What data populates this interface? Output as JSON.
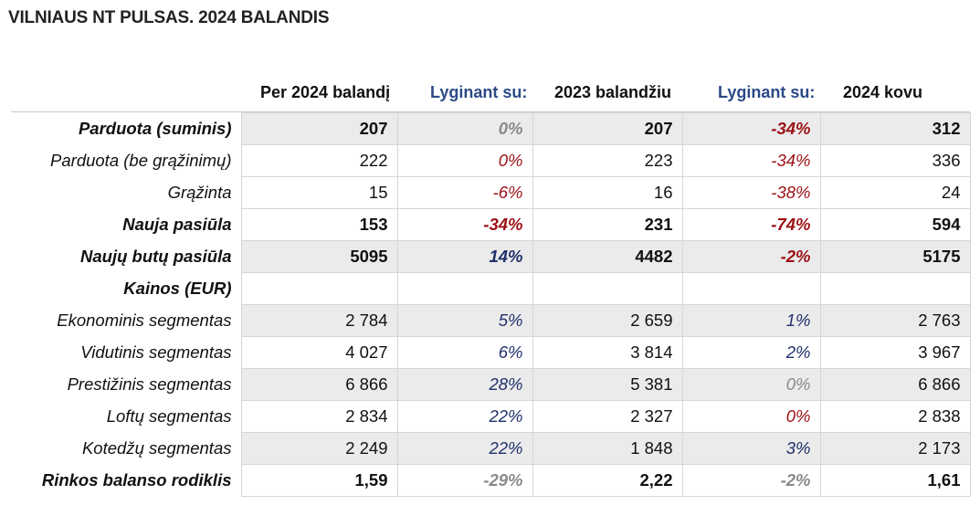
{
  "title": "VILNIAUS NT PULSAS. 2024 BALANDIS",
  "headers": {
    "col1": "Per 2024 balandį",
    "cmp1": "Lyginant su:",
    "col2": "2023 balandžiu",
    "cmp2": "Lyginant su:",
    "col3": "2024 kovu"
  },
  "colors": {
    "header_blue": "#2b4a86",
    "negative_red": "#9c1015",
    "positive_blue": "#1f2f6b",
    "neutral_grey": "#8a8a8a",
    "shade": "#ebebeb"
  },
  "rows": [
    {
      "label": "Parduota (suminis)",
      "bold": true,
      "shade": true,
      "v1": "207",
      "p1": "0%",
      "p1c": "grey",
      "v2": "207",
      "p2": "-34%",
      "p2c": "red",
      "v3": "312"
    },
    {
      "label": "Parduota (be grąžinimų)",
      "bold": false,
      "shade": false,
      "v1": "222",
      "p1": "0%",
      "p1c": "red",
      "v2": "223",
      "p2": "-34%",
      "p2c": "red",
      "v3": "336"
    },
    {
      "label": "Grąžinta",
      "bold": false,
      "shade": false,
      "v1": "15",
      "p1": "-6%",
      "p1c": "red",
      "v2": "16",
      "p2": "-38%",
      "p2c": "red",
      "v3": "24"
    },
    {
      "label": "Nauja pasiūla",
      "bold": true,
      "shade": false,
      "v1": "153",
      "p1": "-34%",
      "p1c": "red",
      "v2": "231",
      "p2": "-74%",
      "p2c": "red",
      "v3": "594"
    },
    {
      "label": "Naujų butų pasiūla",
      "bold": true,
      "shade": true,
      "v1": "5095",
      "p1": "14%",
      "p1c": "blue",
      "v2": "4482",
      "p2": "-2%",
      "p2c": "red",
      "v3": "5175"
    },
    {
      "label": "Kainos (EUR)",
      "bold": true,
      "shade": false,
      "v1": "",
      "p1": "",
      "p1c": "black",
      "v2": "",
      "p2": "",
      "p2c": "black",
      "v3": ""
    },
    {
      "label": "Ekonominis segmentas",
      "bold": false,
      "shade": true,
      "v1": "2 784",
      "p1": "5%",
      "p1c": "blue",
      "v2": "2 659",
      "p2": "1%",
      "p2c": "blue",
      "v3": "2 763"
    },
    {
      "label": "Vidutinis segmentas",
      "bold": false,
      "shade": false,
      "v1": "4 027",
      "p1": "6%",
      "p1c": "blue",
      "v2": "3 814",
      "p2": "2%",
      "p2c": "blue",
      "v3": "3 967"
    },
    {
      "label": "Prestižinis segmentas",
      "bold": false,
      "shade": true,
      "v1": "6 866",
      "p1": "28%",
      "p1c": "blue",
      "v2": "5 381",
      "p2": "0%",
      "p2c": "grey",
      "v3": "6 866"
    },
    {
      "label": "Loftų segmentas",
      "bold": false,
      "shade": false,
      "v1": "2 834",
      "p1": "22%",
      "p1c": "blue",
      "v2": "2 327",
      "p2": "0%",
      "p2c": "red",
      "v3": "2 838"
    },
    {
      "label": "Kotedžų segmentas",
      "bold": false,
      "shade": true,
      "v1": "2 249",
      "p1": "22%",
      "p1c": "blue",
      "v2": "1 848",
      "p2": "3%",
      "p2c": "blue",
      "v3": "2 173"
    },
    {
      "label": "Rinkos balanso rodiklis",
      "bold": true,
      "shade": false,
      "v1": "1,59",
      "p1": "-29%",
      "p1c": "grey",
      "v2": "2,22",
      "p2": "-2%",
      "p2c": "grey",
      "v3": "1,61"
    }
  ]
}
